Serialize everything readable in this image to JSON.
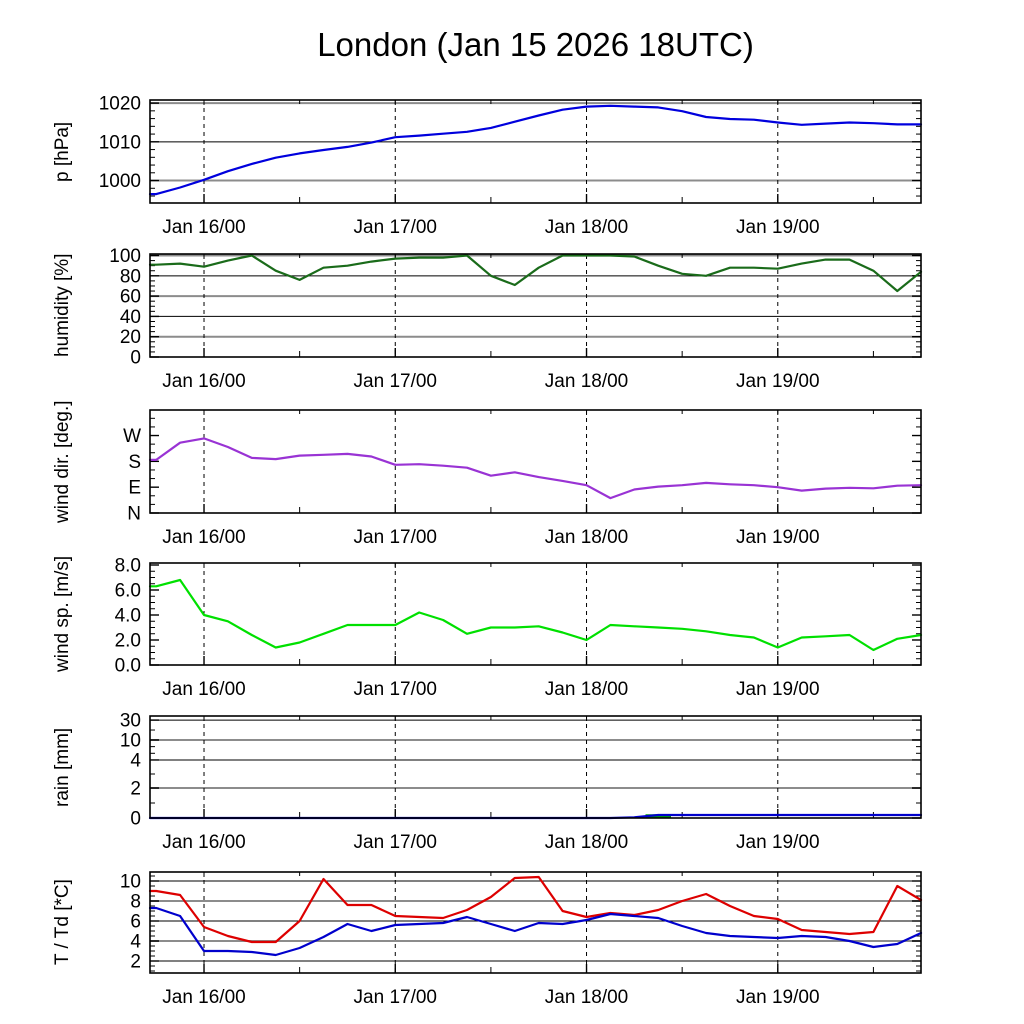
{
  "title": "London (Jan 15 2026 18UTC)",
  "chart_data": {
    "type": "line",
    "title": "London (Jan 15 2026 18UTC)",
    "x_note": "hours since plot start (model run Jan 15 2026 18UTC); plot spans ~Jan 15 17UTC to Jan 19 18UTC",
    "x_hours": [
      0,
      3,
      6,
      9,
      12,
      15,
      18,
      21,
      24,
      27,
      30,
      33,
      36,
      39,
      42,
      45,
      48,
      51,
      54,
      57,
      60,
      63,
      66,
      69,
      72,
      75,
      78,
      81,
      84,
      87,
      90,
      93,
      96
    ],
    "x_gridlines": [
      {
        "hour": 6,
        "label": "Jan 16/00"
      },
      {
        "hour": 30,
        "label": "Jan 17/00"
      },
      {
        "hour": 54,
        "label": "Jan 18/00"
      },
      {
        "hour": 78,
        "label": "Jan 19/00"
      }
    ],
    "x_minor_tick_hours": [
      18,
      42,
      66,
      90
    ],
    "panels": [
      {
        "id": "pressure",
        "ylabel": "p [hPa]",
        "ylim": [
          994.2,
          1020.8
        ],
        "minor_step": 2,
        "yticks": [
          {
            "v": 1000,
            "label": "1000",
            "line": "gray"
          },
          {
            "v": 1010,
            "label": "1010",
            "line": "black"
          },
          {
            "v": 1020,
            "label": "1020",
            "line": "gray"
          }
        ],
        "series": [
          {
            "name": "pressure",
            "color": "#0000dd",
            "values": [
              996.5,
              998.2,
              1000.2,
              1002.4,
              1004.3,
              1005.9,
              1007.0,
              1007.9,
              1008.7,
              1009.8,
              1011.2,
              1011.6,
              1012.1,
              1012.6,
              1013.6,
              1015.2,
              1016.8,
              1018.3,
              1019.1,
              1019.3,
              1019.1,
              1018.9,
              1017.9,
              1016.4,
              1015.9,
              1015.7,
              1015.0,
              1014.4,
              1014.7,
              1015.0,
              1014.8,
              1014.5,
              1014.5
            ]
          }
        ]
      },
      {
        "id": "humidity",
        "ylabel": "humidity [%]",
        "ylim": [
          0,
          101.5
        ],
        "minor_step": 5,
        "yticks": [
          {
            "v": 0,
            "label": "0",
            "line": "none"
          },
          {
            "v": 20,
            "label": "20",
            "line": "gray"
          },
          {
            "v": 40,
            "label": "40",
            "line": "black"
          },
          {
            "v": 60,
            "label": "60",
            "line": "gray"
          },
          {
            "v": 80,
            "label": "80",
            "line": "black"
          },
          {
            "v": 100,
            "label": "100",
            "line": "gray"
          }
        ],
        "series": [
          {
            "name": "humidity",
            "color": "#1a6b1a",
            "values": [
              91,
              92,
              89,
              95,
              100,
              85,
              76,
              88,
              90,
              94,
              97,
              98,
              98,
              100,
              80,
              71,
              88,
              100,
              100,
              100,
              99,
              90,
              82,
              80,
              88,
              88,
              87,
              92,
              96,
              96,
              85,
              65,
              84
            ]
          }
        ]
      },
      {
        "id": "wind-direction",
        "ylabel": "wind dir. [deg.]",
        "ylim": [
          0,
          359
        ],
        "minor_step": 30,
        "yticks": [
          {
            "v": 0,
            "label": "N",
            "line": "none"
          },
          {
            "v": 90,
            "label": "E",
            "line": "none"
          },
          {
            "v": 180,
            "label": "S",
            "line": "none"
          },
          {
            "v": 270,
            "label": "W",
            "line": "none"
          }
        ],
        "series": [
          {
            "name": "wind-direction",
            "color": "#9933d4",
            "values": [
              185,
              245,
              260,
              230,
              192,
              188,
              200,
              203,
              206,
              197,
              168,
              170,
              165,
              158,
              130,
              142,
              125,
              112,
              97,
              52,
              82,
              92,
              97,
              105,
              100,
              97,
              90,
              78,
              85,
              88,
              86,
              95,
              97
            ]
          }
        ]
      },
      {
        "id": "wind-speed",
        "ylabel": "wind sp. [m/s]",
        "ylim": [
          0,
          8.16
        ],
        "minor_step": 0.5,
        "yticks": [
          {
            "v": 0,
            "label": "0.0",
            "line": "none"
          },
          {
            "v": 2,
            "label": "2.0",
            "line": "none"
          },
          {
            "v": 4,
            "label": "4.0",
            "line": "none"
          },
          {
            "v": 6,
            "label": "6.0",
            "line": "none"
          },
          {
            "v": 8,
            "label": "8.0",
            "line": "none"
          }
        ],
        "series": [
          {
            "name": "wind-speed",
            "color": "#00e000",
            "values": [
              6.3,
              6.8,
              4.0,
              3.5,
              2.4,
              1.4,
              1.8,
              2.5,
              3.2,
              3.2,
              3.2,
              4.2,
              3.6,
              2.5,
              3.0,
              3.0,
              3.1,
              2.6,
              2.0,
              3.2,
              3.1,
              3.0,
              2.9,
              2.7,
              2.4,
              2.2,
              1.4,
              2.2,
              2.3,
              2.4,
              1.2,
              2.1,
              2.4
            ]
          }
        ]
      },
      {
        "id": "rain",
        "ylabel": "rain [mm]",
        "y_anchors": [
          [
            0,
            0
          ],
          [
            2,
            0.294
          ],
          [
            4,
            0.569
          ],
          [
            10,
            0.765
          ],
          [
            30,
            0.96
          ]
        ],
        "minor_tick_values": [
          1,
          3,
          6,
          8,
          20
        ],
        "yticks": [
          {
            "v": 0,
            "label": "0",
            "line": "none"
          },
          {
            "v": 2,
            "label": "2",
            "line": "gray"
          },
          {
            "v": 4,
            "label": "4",
            "line": "black"
          },
          {
            "v": 10,
            "label": "10",
            "line": "gray"
          },
          {
            "v": 30,
            "label": "30",
            "line": "black"
          }
        ],
        "series": [
          {
            "name": "rain-shower",
            "type": "bar",
            "color": "#00a000",
            "values": [
              0,
              0,
              0,
              0,
              0,
              0,
              0,
              0,
              0,
              0,
              0,
              0,
              0,
              0,
              0,
              0,
              0,
              0,
              0,
              0,
              0,
              0.25,
              0,
              0,
              0,
              0,
              0,
              0,
              0,
              0,
              0,
              0,
              0
            ]
          },
          {
            "name": "rain",
            "type": "line",
            "color": "#0000cc",
            "values": [
              0,
              0,
              0,
              0,
              0,
              0,
              0,
              0,
              0,
              0,
              0,
              0,
              0,
              0,
              0,
              0,
              0,
              0,
              0,
              0,
              0.05,
              0.2,
              0.2,
              0.2,
              0.2,
              0.2,
              0.2,
              0.2,
              0.2,
              0.2,
              0.2,
              0.2,
              0.2
            ]
          }
        ]
      },
      {
        "id": "temperature",
        "ylabel": "T / Td [*C]",
        "ylim": [
          0.8,
          10.9
        ],
        "minor_step": 0.5,
        "yticks": [
          {
            "v": 2,
            "label": "2",
            "line": "black"
          },
          {
            "v": 4,
            "label": "4",
            "line": "gray"
          },
          {
            "v": 6,
            "label": "6",
            "line": "black"
          },
          {
            "v": 8,
            "label": "8",
            "line": "gray"
          },
          {
            "v": 10,
            "label": "10",
            "line": "black"
          }
        ],
        "series": [
          {
            "name": "temperature",
            "color": "#dd0000",
            "values": [
              9.0,
              8.6,
              5.4,
              4.5,
              3.9,
              3.9,
              6.0,
              10.2,
              7.6,
              7.6,
              6.5,
              6.4,
              6.3,
              7.1,
              8.4,
              10.3,
              10.4,
              7.0,
              6.4,
              6.8,
              6.6,
              7.1,
              8.0,
              8.7,
              7.5,
              6.5,
              6.2,
              5.1,
              4.9,
              4.7,
              4.9,
              9.5,
              8.1
            ]
          },
          {
            "name": "dew-point",
            "color": "#0000cc",
            "values": [
              7.3,
              6.5,
              3.0,
              3.0,
              2.9,
              2.6,
              3.3,
              4.4,
              5.7,
              5.0,
              5.6,
              5.7,
              5.8,
              6.4,
              5.7,
              5.0,
              5.8,
              5.7,
              6.1,
              6.7,
              6.5,
              6.3,
              5.5,
              4.8,
              4.5,
              4.4,
              4.3,
              4.5,
              4.4,
              4.0,
              3.4,
              3.7,
              4.8
            ]
          }
        ]
      }
    ]
  }
}
